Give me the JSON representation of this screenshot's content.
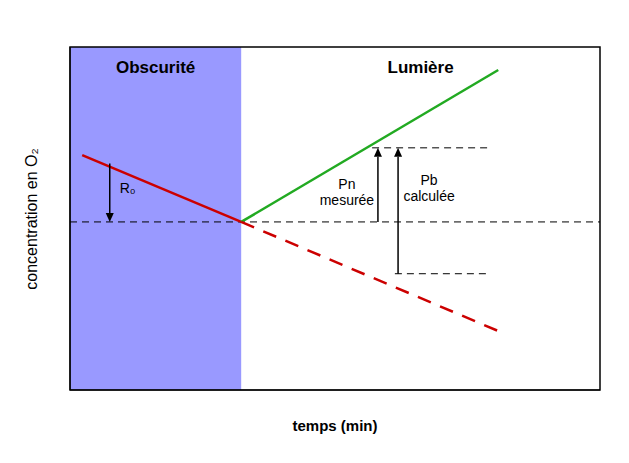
{
  "chart_data": {
    "type": "line",
    "x_label": "temps (min)",
    "y_label": "concentration en O₂",
    "xlim": [
      0,
      100
    ],
    "ylim": [
      0,
      100
    ],
    "tick_labels": false,
    "grid": false,
    "regions": [
      {
        "label": "Obscurité",
        "x": [
          0,
          32.3
        ],
        "color": "#9999ff"
      },
      {
        "label": "Lumière",
        "x": [
          32.3,
          100
        ]
      }
    ],
    "series": [
      {
        "color": "#cc0000",
        "x": [
          2.3,
          32.3
        ],
        "values": [
          68.5,
          49.0
        ]
      },
      {
        "color": "#22aa22",
        "x": [
          32.3,
          80.8
        ],
        "values": [
          49.0,
          93.3
        ]
      },
      {
        "color": "#cc0000",
        "line_style": "dashed",
        "x": [
          32.3,
          80.8
        ],
        "values": [
          49.0,
          17.2
        ]
      }
    ],
    "reference_lines": [
      {
        "y": 49.0,
        "x": [
          0,
          100
        ]
      },
      {
        "y": 70.6,
        "x": [
          57,
          78.7
        ]
      },
      {
        "y": 33.9,
        "x": [
          61.3,
          78.7
        ]
      }
    ],
    "arrows": [
      {
        "label": "R₀",
        "x": 7.5,
        "y": [
          66,
          49.0
        ]
      },
      {
        "label": "Pn mesurée",
        "x": 58.1,
        "y": [
          49.0,
          70.6
        ]
      },
      {
        "label": "Pb calculée",
        "x": 61.9,
        "y": [
          33.9,
          70.6
        ]
      }
    ]
  }
}
